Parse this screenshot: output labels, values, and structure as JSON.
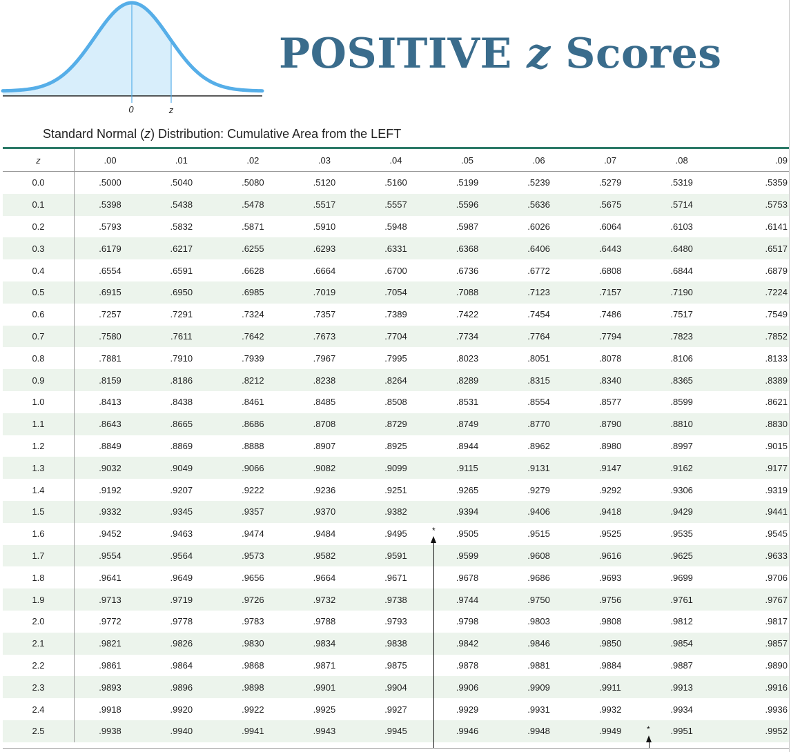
{
  "header": {
    "title_main": "POSITIVE ",
    "title_z": "z",
    "title_end": " Scores",
    "subtitle_start": "Standard Normal (",
    "subtitle_z": "z",
    "subtitle_end": ") Distribution: Cumulative Area from the LEFT"
  },
  "curve": {
    "label_zero": "0",
    "label_z": "z",
    "fill_color": "#d8eefb",
    "stroke_color": "#56aee8"
  },
  "colors": {
    "title": "#3a6c8c",
    "rule": "#2c7a68",
    "stripe": "#ecf4ec"
  },
  "table": {
    "z_header": "z",
    "columns": [
      ".00",
      ".01",
      ".02",
      ".03",
      ".04",
      ".05",
      ".06",
      ".07",
      ".08",
      ".09"
    ],
    "rows": [
      {
        "z": "0.0",
        "values": [
          ".5000",
          ".5040",
          ".5080",
          ".5120",
          ".5160",
          ".5199",
          ".5239",
          ".5279",
          ".5319",
          ".5359"
        ]
      },
      {
        "z": "0.1",
        "values": [
          ".5398",
          ".5438",
          ".5478",
          ".5517",
          ".5557",
          ".5596",
          ".5636",
          ".5675",
          ".5714",
          ".5753"
        ]
      },
      {
        "z": "0.2",
        "values": [
          ".5793",
          ".5832",
          ".5871",
          ".5910",
          ".5948",
          ".5987",
          ".6026",
          ".6064",
          ".6103",
          ".6141"
        ]
      },
      {
        "z": "0.3",
        "values": [
          ".6179",
          ".6217",
          ".6255",
          ".6293",
          ".6331",
          ".6368",
          ".6406",
          ".6443",
          ".6480",
          ".6517"
        ]
      },
      {
        "z": "0.4",
        "values": [
          ".6554",
          ".6591",
          ".6628",
          ".6664",
          ".6700",
          ".6736",
          ".6772",
          ".6808",
          ".6844",
          ".6879"
        ]
      },
      {
        "z": "0.5",
        "values": [
          ".6915",
          ".6950",
          ".6985",
          ".7019",
          ".7054",
          ".7088",
          ".7123",
          ".7157",
          ".7190",
          ".7224"
        ]
      },
      {
        "z": "0.6",
        "values": [
          ".7257",
          ".7291",
          ".7324",
          ".7357",
          ".7389",
          ".7422",
          ".7454",
          ".7486",
          ".7517",
          ".7549"
        ]
      },
      {
        "z": "0.7",
        "values": [
          ".7580",
          ".7611",
          ".7642",
          ".7673",
          ".7704",
          ".7734",
          ".7764",
          ".7794",
          ".7823",
          ".7852"
        ]
      },
      {
        "z": "0.8",
        "values": [
          ".7881",
          ".7910",
          ".7939",
          ".7967",
          ".7995",
          ".8023",
          ".8051",
          ".8078",
          ".8106",
          ".8133"
        ]
      },
      {
        "z": "0.9",
        "values": [
          ".8159",
          ".8186",
          ".8212",
          ".8238",
          ".8264",
          ".8289",
          ".8315",
          ".8340",
          ".8365",
          ".8389"
        ]
      },
      {
        "z": "1.0",
        "values": [
          ".8413",
          ".8438",
          ".8461",
          ".8485",
          ".8508",
          ".8531",
          ".8554",
          ".8577",
          ".8599",
          ".8621"
        ]
      },
      {
        "z": "1.1",
        "values": [
          ".8643",
          ".8665",
          ".8686",
          ".8708",
          ".8729",
          ".8749",
          ".8770",
          ".8790",
          ".8810",
          ".8830"
        ]
      },
      {
        "z": "1.2",
        "values": [
          ".8849",
          ".8869",
          ".8888",
          ".8907",
          ".8925",
          ".8944",
          ".8962",
          ".8980",
          ".8997",
          ".9015"
        ]
      },
      {
        "z": "1.3",
        "values": [
          ".9032",
          ".9049",
          ".9066",
          ".9082",
          ".9099",
          ".9115",
          ".9131",
          ".9147",
          ".9162",
          ".9177"
        ]
      },
      {
        "z": "1.4",
        "values": [
          ".9192",
          ".9207",
          ".9222",
          ".9236",
          ".9251",
          ".9265",
          ".9279",
          ".9292",
          ".9306",
          ".9319"
        ]
      },
      {
        "z": "1.5",
        "values": [
          ".9332",
          ".9345",
          ".9357",
          ".9370",
          ".9382",
          ".9394",
          ".9406",
          ".9418",
          ".9429",
          ".9441"
        ]
      },
      {
        "z": "1.6",
        "values": [
          ".9452",
          ".9463",
          ".9474",
          ".9484",
          ".9495",
          ".9505",
          ".9515",
          ".9525",
          ".9535",
          ".9545"
        ]
      },
      {
        "z": "1.7",
        "values": [
          ".9554",
          ".9564",
          ".9573",
          ".9582",
          ".9591",
          ".9599",
          ".9608",
          ".9616",
          ".9625",
          ".9633"
        ]
      },
      {
        "z": "1.8",
        "values": [
          ".9641",
          ".9649",
          ".9656",
          ".9664",
          ".9671",
          ".9678",
          ".9686",
          ".9693",
          ".9699",
          ".9706"
        ]
      },
      {
        "z": "1.9",
        "values": [
          ".9713",
          ".9719",
          ".9726",
          ".9732",
          ".9738",
          ".9744",
          ".9750",
          ".9756",
          ".9761",
          ".9767"
        ]
      },
      {
        "z": "2.0",
        "values": [
          ".9772",
          ".9778",
          ".9783",
          ".9788",
          ".9793",
          ".9798",
          ".9803",
          ".9808",
          ".9812",
          ".9817"
        ]
      },
      {
        "z": "2.1",
        "values": [
          ".9821",
          ".9826",
          ".9830",
          ".9834",
          ".9838",
          ".9842",
          ".9846",
          ".9850",
          ".9854",
          ".9857"
        ]
      },
      {
        "z": "2.2",
        "values": [
          ".9861",
          ".9864",
          ".9868",
          ".9871",
          ".9875",
          ".9878",
          ".9881",
          ".9884",
          ".9887",
          ".9890"
        ]
      },
      {
        "z": "2.3",
        "values": [
          ".9893",
          ".9896",
          ".9898",
          ".9901",
          ".9904",
          ".9906",
          ".9909",
          ".9911",
          ".9913",
          ".9916"
        ]
      },
      {
        "z": "2.4",
        "values": [
          ".9918",
          ".9920",
          ".9922",
          ".9925",
          ".9927",
          ".9929",
          ".9931",
          ".9932",
          ".9934",
          ".9936"
        ]
      },
      {
        "z": "2.5",
        "values": [
          ".9938",
          ".9940",
          ".9941",
          ".9943",
          ".9945",
          ".9946",
          ".9948",
          ".9949",
          ".9951",
          ".9952"
        ]
      }
    ]
  },
  "markers": {
    "star_1": "*",
    "star_2": "*"
  }
}
